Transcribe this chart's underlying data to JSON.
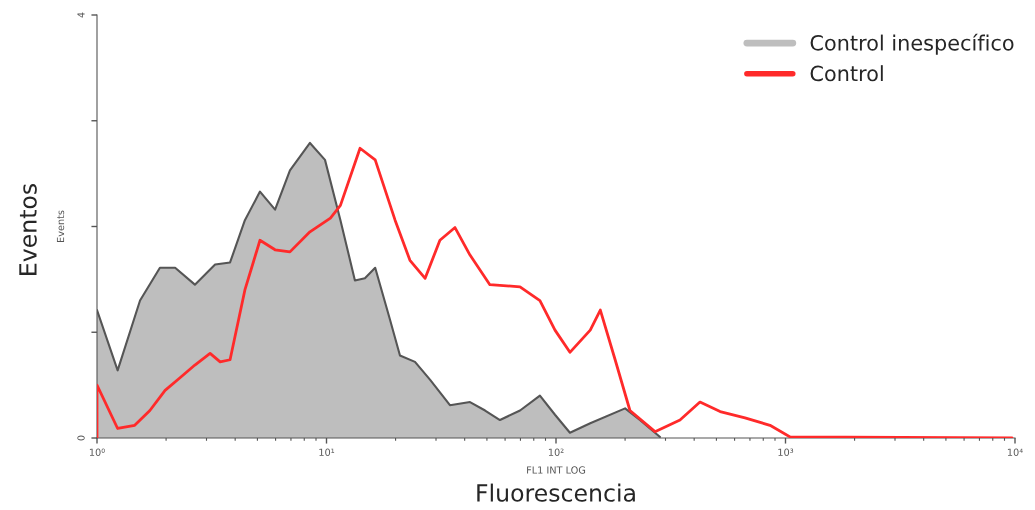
{
  "chart_data": {
    "type": "line",
    "xlabel": "FL1 INT LOG",
    "ylabel": "Events",
    "annotations": [
      "Eventos",
      "Fluorescencia"
    ],
    "log": "x",
    "xlim": [
      1,
      10000
    ],
    "xticks": [
      {
        "value": 1,
        "label": "10⁰"
      },
      {
        "value": 10,
        "label": "10¹"
      },
      {
        "value": 100,
        "label": "10²"
      },
      {
        "value": 1000,
        "label": "10³"
      },
      {
        "value": 10000,
        "label": "10⁴"
      }
    ],
    "ylim": [
      0,
      4
    ],
    "yticks": [
      0,
      {
        "value": 1,
        "label": null
      },
      {
        "value": 2,
        "label": null
      },
      {
        "value": 3,
        "label": null
      },
      4
    ],
    "grid": false,
    "legend": "top right",
    "series": [
      {
        "name": "Control inespecífico",
        "type": "area",
        "color": "#bebebe",
        "x": [
          1,
          1.23,
          1.54,
          1.88,
          2.19,
          2.67,
          3.27,
          3.8,
          4.41,
          5.13,
          5.97,
          6.93,
          8.47,
          9.85,
          11.5,
          13.3,
          14.7,
          16.3,
          18.9,
          20.9,
          24.3,
          28.3,
          34.5,
          42.2,
          49.1,
          57.0,
          69.7,
          85.1,
          99,
          115,
          141,
          200,
          232,
          284
        ],
        "values": [
          1.21,
          0.64,
          1.3,
          1.61,
          1.61,
          1.45,
          1.64,
          1.66,
          2.06,
          2.33,
          2.16,
          2.53,
          2.79,
          2.63,
          2.06,
          1.49,
          1.51,
          1.61,
          1.12,
          0.78,
          0.72,
          0.55,
          0.31,
          0.34,
          0.26,
          0.17,
          0.26,
          0.4,
          0.22,
          0.05,
          0.14,
          0.28,
          0.17,
          0.01
        ]
      },
      {
        "name": "Control",
        "color": "#ff2a2a",
        "x": [
          1,
          1,
          1.23,
          1.46,
          1.7,
          1.98,
          2.3,
          2.67,
          3.11,
          3.44,
          3.8,
          4.41,
          5.13,
          5.97,
          6.93,
          8.47,
          10.4,
          11.5,
          14.0,
          16.3,
          19.9,
          23.1,
          26.9,
          31.2,
          36.3,
          42.2,
          51.5,
          69.7,
          85.1,
          99,
          115,
          141,
          156,
          181,
          210,
          270,
          347,
          424,
          519,
          666,
          856,
          1047,
          9700
        ],
        "values": [
          0,
          0.5,
          0.09,
          0.12,
          0.26,
          0.45,
          0.57,
          0.69,
          0.8,
          0.72,
          0.74,
          1.4,
          1.87,
          1.78,
          1.76,
          1.95,
          2.08,
          2.2,
          2.74,
          2.63,
          2.06,
          1.68,
          1.51,
          1.87,
          1.99,
          1.73,
          1.45,
          1.43,
          1.3,
          1.02,
          0.81,
          1.02,
          1.21,
          0.74,
          0.26,
          0.06,
          0.17,
          0.34,
          0.25,
          0.19,
          0.12,
          0.01,
          0
        ]
      }
    ]
  }
}
